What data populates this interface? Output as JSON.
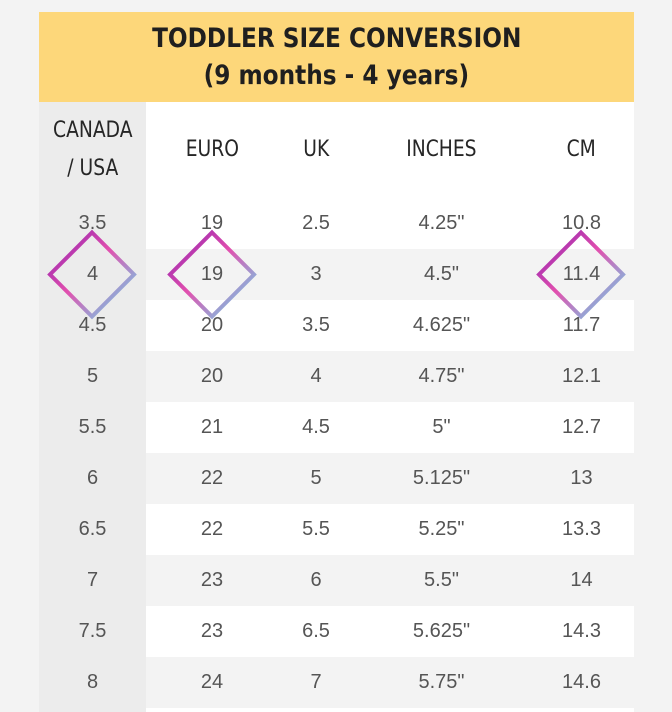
{
  "title": {
    "line1": "TODDLER SIZE CONVERSION",
    "line2": "(9 months - 4 years)"
  },
  "headers": [
    "CANADA\n/ USA",
    "EURO",
    "UK",
    "INCHES",
    "CM"
  ],
  "rows": [
    [
      "3.5",
      "19",
      "2.5",
      "4.25\"",
      "10.8"
    ],
    [
      "4",
      "19",
      "3",
      "4.5\"",
      "11.4"
    ],
    [
      "4.5",
      "20",
      "3.5",
      "4.625\"",
      "11.7"
    ],
    [
      "5",
      "20",
      "4",
      "4.75\"",
      "12.1"
    ],
    [
      "5.5",
      "21",
      "4.5",
      "5\"",
      "12.7"
    ],
    [
      "6",
      "22",
      "5",
      "5.125\"",
      "13"
    ],
    [
      "6.5",
      "22",
      "5.5",
      "5.25\"",
      "13.3"
    ],
    [
      "7",
      "23",
      "6",
      "5.5\"",
      "14"
    ],
    [
      "7.5",
      "23",
      "6.5",
      "5.625\"",
      "14.3"
    ],
    [
      "8",
      "24",
      "7",
      "5.75\"",
      "14.6"
    ]
  ],
  "highlight": {
    "row": 1,
    "columns": [
      0,
      1,
      4
    ],
    "gradient": [
      "#8a1fb0",
      "#e24fae",
      "#5fe3f0"
    ]
  },
  "colors": {
    "title_bg": "#fdd77a",
    "first_col_bg": "#ececec",
    "alt_row_bg": "#f3f3f3"
  }
}
